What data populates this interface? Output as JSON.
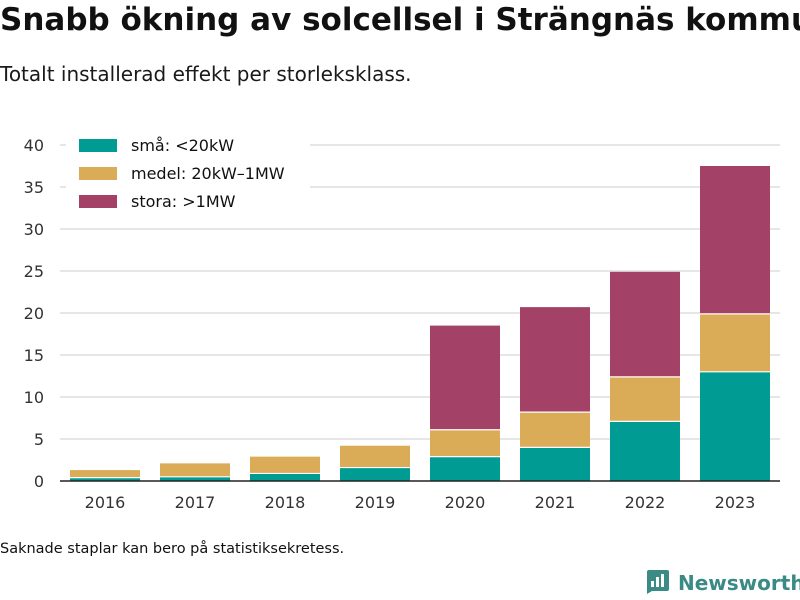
{
  "header": {
    "title": "Snabb ökning av solcellsel i Strängnäs kommun",
    "subtitle": "Totalt installerad effekt per storleksklass."
  },
  "footer": {
    "note": "Saknade staplar kan bero på statistiksekretess.",
    "brand": "Newsworthy"
  },
  "colors": {
    "sma": "#009c93",
    "medel": "#dbac58",
    "stora": "#a34166",
    "axis": "#222222",
    "grid": "#cccccc",
    "brand": "#3a8a86"
  },
  "chart_data": {
    "type": "bar",
    "stacked": true,
    "categories": [
      "2016",
      "2017",
      "2018",
      "2019",
      "2020",
      "2021",
      "2022",
      "2023"
    ],
    "series": [
      {
        "name": "små: <20kW",
        "color": "#009c93",
        "values": [
          0.4,
          0.5,
          0.9,
          1.6,
          2.9,
          4.0,
          7.1,
          13.0
        ]
      },
      {
        "name": "medel: 20kW–1MW",
        "color": "#dbac58",
        "values": [
          0.9,
          1.6,
          2.0,
          2.6,
          3.2,
          4.2,
          5.3,
          6.9
        ]
      },
      {
        "name": "stora: >1MW",
        "color": "#a34166",
        "values": [
          0,
          0,
          0,
          0,
          12.4,
          12.5,
          12.5,
          17.6
        ]
      }
    ],
    "yticks": [
      0,
      5,
      10,
      15,
      20,
      25,
      30,
      35,
      40
    ],
    "ylim": [
      0,
      40
    ],
    "legend_position": "top-left",
    "grid": "horizontal"
  }
}
